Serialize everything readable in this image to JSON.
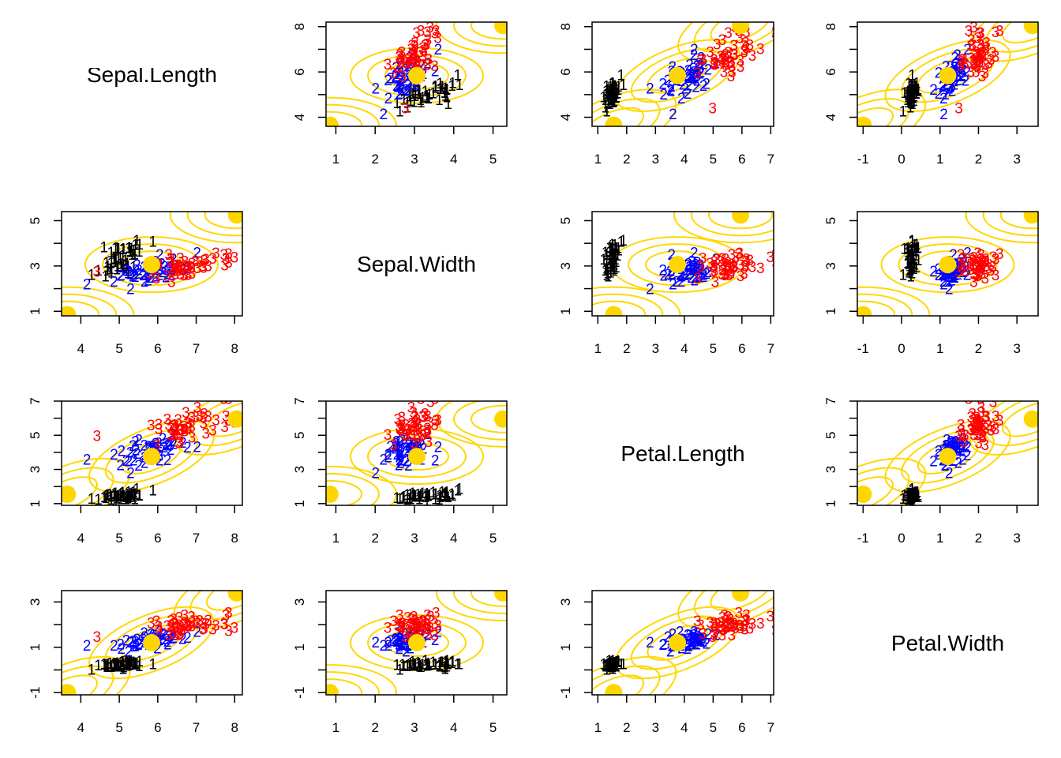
{
  "chart_data": {
    "type": "scatter",
    "kind": "pairs-plot with model-based clustering (mixture components)",
    "variables": [
      "Sepal.Length",
      "Sepal.Width",
      "Petal.Length",
      "Petal.Width"
    ],
    "axis": {
      "Sepal.Length": {
        "range": [
          3.5,
          8.2
        ],
        "ticks": [
          4,
          5,
          6,
          7,
          8
        ],
        "y_ticks": [
          4,
          5,
          6,
          7,
          8
        ],
        "y_tick_labels": [
          "4",
          "",
          "6",
          "",
          "8"
        ],
        "y_range": [
          3.6,
          8.2
        ]
      },
      "Sepal.Width": {
        "range": [
          0.75,
          5.35
        ],
        "ticks": [
          1,
          2,
          3,
          4,
          5
        ],
        "y_ticks": [
          1,
          2,
          3,
          4,
          5
        ],
        "y_tick_labels": [
          "1",
          "",
          "3",
          "",
          "5"
        ],
        "y_range": [
          0.8,
          5.4
        ]
      },
      "Petal.Length": {
        "range": [
          0.8,
          7.1
        ],
        "ticks": [
          1,
          2,
          3,
          4,
          5,
          6,
          7
        ],
        "y_ticks": [
          1,
          2,
          3,
          4,
          5,
          6,
          7
        ],
        "y_tick_labels": [
          "1",
          "",
          "3",
          "",
          "5",
          "",
          "7"
        ],
        "y_range": [
          0.9,
          7.0
        ]
      },
      "Petal.Width": {
        "range": [
          -1.15,
          3.55
        ],
        "ticks": [
          -1,
          0,
          1,
          2,
          3
        ],
        "y_ticks": [
          -1,
          0,
          1,
          2,
          3
        ],
        "y_tick_labels": [
          "-1",
          "",
          "1",
          "",
          "3"
        ],
        "y_range": [
          -1.1,
          3.5
        ]
      }
    },
    "x_tick_labels_shown": {
      "Sepal.Length": [
        "4",
        "5",
        "6",
        "7",
        "8"
      ],
      "Sepal.Width": [
        "1",
        "2",
        "3",
        "4",
        "5"
      ],
      "Petal.Length": [
        "1",
        "2",
        "3",
        "4",
        "5",
        "6",
        "7"
      ],
      "Petal.Width": [
        "-1",
        "0",
        "1",
        "2",
        "3"
      ]
    },
    "classes": [
      {
        "label": "1",
        "color": "#000000",
        "mean": {
          "Sepal.Length": 5.0,
          "Sepal.Width": 3.4,
          "Petal.Length": 1.46,
          "Petal.Width": 0.25
        },
        "sd": {
          "Sepal.Length": 0.35,
          "Sepal.Width": 0.38,
          "Petal.Length": 0.17,
          "Petal.Width": 0.1
        }
      },
      {
        "label": "2",
        "color": "#0000ff",
        "mean": {
          "Sepal.Length": 5.9,
          "Sepal.Width": 2.77,
          "Petal.Length": 4.26,
          "Petal.Width": 1.33
        },
        "sd": {
          "Sepal.Length": 0.5,
          "Sepal.Width": 0.31,
          "Petal.Length": 0.47,
          "Petal.Width": 0.2
        }
      },
      {
        "label": "3",
        "color": "#ff0000",
        "mean": {
          "Sepal.Length": 6.59,
          "Sepal.Width": 2.97,
          "Petal.Length": 5.55,
          "Petal.Width": 2.03
        },
        "sd": {
          "Sepal.Length": 0.64,
          "Sepal.Width": 0.32,
          "Petal.Length": 0.55,
          "Petal.Width": 0.27
        }
      }
    ],
    "points_per_class": 50,
    "components": {
      "color": "#ffd700",
      "centers": [
        {
          "Sepal.Length": 3.65,
          "Sepal.Width": 0.85,
          "Petal.Length": 1.55,
          "Petal.Width": -1.0
        },
        {
          "Sepal.Length": 5.84,
          "Sepal.Width": 3.06,
          "Petal.Length": 3.76,
          "Petal.Width": 1.2
        },
        {
          "Sepal.Length": 8.05,
          "Sepal.Width": 5.25,
          "Petal.Length": 5.95,
          "Petal.Width": 3.4
        }
      ],
      "contour_levels": 3
    },
    "diagonal_labels": [
      "Sepal.Length",
      "Sepal.Width",
      "Petal.Length",
      "Petal.Width"
    ],
    "title": "",
    "grid": false,
    "legend": "none"
  }
}
